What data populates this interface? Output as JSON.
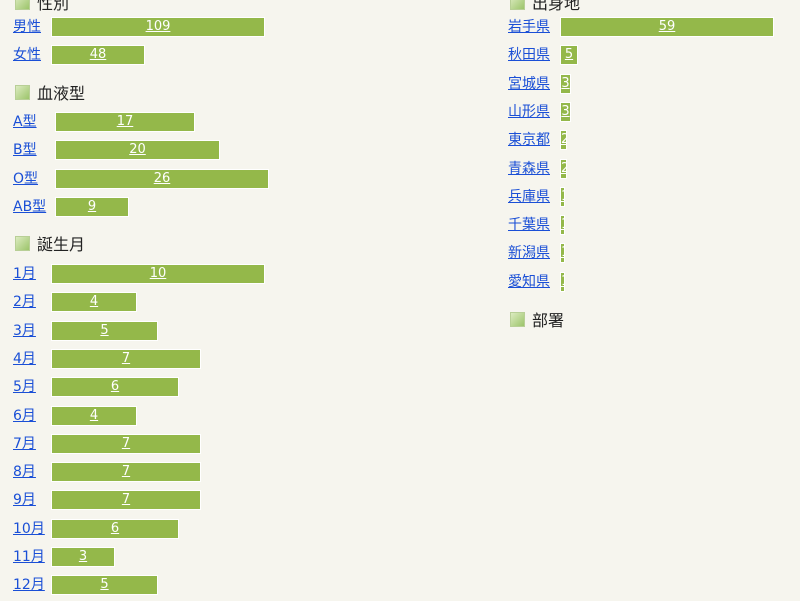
{
  "colors": {
    "bar": "#94b84a",
    "link": "#1a4fd6",
    "background": "#f6f5ee"
  },
  "groups": [
    {
      "title": "性別",
      "items": [
        {
          "label": "男性",
          "value": 109
        },
        {
          "label": "女性",
          "value": 48
        }
      ]
    },
    {
      "title": "血液型",
      "items": [
        {
          "label": "A型",
          "value": 17
        },
        {
          "label": "B型",
          "value": 20
        },
        {
          "label": "O型",
          "value": 26
        },
        {
          "label": "AB型",
          "value": 9
        }
      ]
    },
    {
      "title": "誕生月",
      "items": [
        {
          "label": "1月",
          "value": 10
        },
        {
          "label": "2月",
          "value": 4
        },
        {
          "label": "3月",
          "value": 5
        },
        {
          "label": "4月",
          "value": 7
        },
        {
          "label": "5月",
          "value": 6
        },
        {
          "label": "6月",
          "value": 4
        },
        {
          "label": "7月",
          "value": 7
        },
        {
          "label": "8月",
          "value": 7
        },
        {
          "label": "9月",
          "value": 7
        },
        {
          "label": "10月",
          "value": 6
        },
        {
          "label": "11月",
          "value": 3
        },
        {
          "label": "12月",
          "value": 5
        }
      ]
    },
    {
      "title": "出身地",
      "items": [
        {
          "label": "岩手県",
          "value": 59
        },
        {
          "label": "秋田県",
          "value": 5
        },
        {
          "label": "宮城県",
          "value": 3
        },
        {
          "label": "山形県",
          "value": 3
        },
        {
          "label": "東京都",
          "value": 2
        },
        {
          "label": "青森県",
          "value": 2
        },
        {
          "label": "兵庫県",
          "value": 1
        },
        {
          "label": "千葉県",
          "value": 1
        },
        {
          "label": "新潟県",
          "value": 1
        },
        {
          "label": "愛知県",
          "value": 1
        }
      ]
    },
    {
      "title": "部署",
      "items": []
    }
  ]
}
